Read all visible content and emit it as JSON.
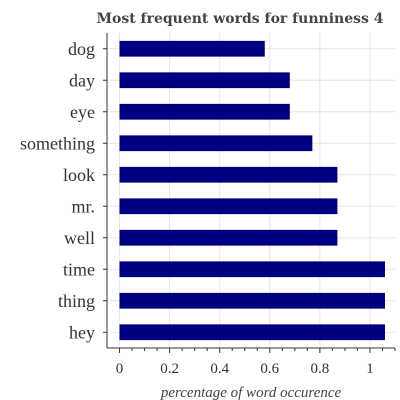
{
  "chart_data": {
    "type": "bar",
    "orientation": "horizontal",
    "title": "Most frequent words for funniness 4",
    "xlabel": "percentage of word occurence",
    "ylabel": "",
    "categories": [
      "dog",
      "day",
      "eye",
      "something",
      "look",
      "mr.",
      "well",
      "time",
      "thing",
      "hey"
    ],
    "values": [
      0.58,
      0.68,
      0.68,
      0.77,
      0.87,
      0.87,
      0.87,
      1.06,
      1.06,
      1.06
    ],
    "xlim": [
      -0.05,
      1.1
    ],
    "xticks": [
      "0",
      "0.2",
      "0.4",
      "0.6",
      "0.8",
      "1"
    ],
    "bar_color": "#000080",
    "grid": true,
    "legend": "none"
  }
}
